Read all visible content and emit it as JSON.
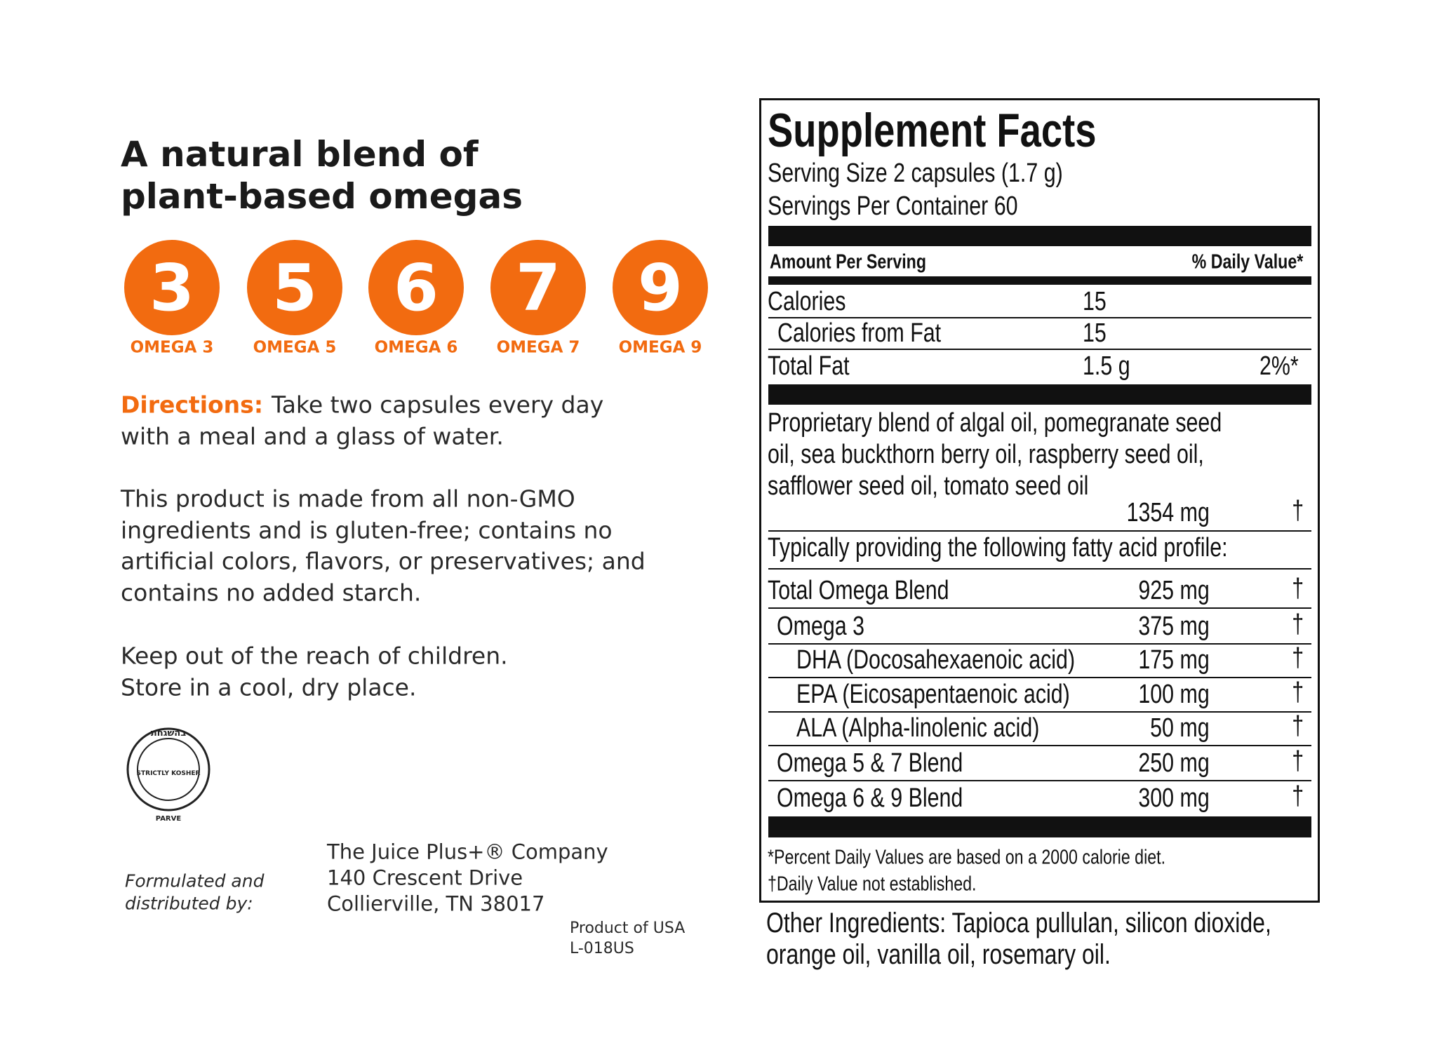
{
  "left": {
    "title_lines": [
      "A natural blend of",
      "plant-based omegas"
    ],
    "omegas": [
      {
        "number": "3",
        "label": "OMEGA 3"
      },
      {
        "number": "5",
        "label": "OMEGA 5"
      },
      {
        "number": "6",
        "label": "OMEGA 6"
      },
      {
        "number": "7",
        "label": "OMEGA 7"
      },
      {
        "number": "9",
        "label": "OMEGA 9"
      }
    ],
    "directions": {
      "label": "Directions:",
      "text_lines": [
        "Take two capsules every day",
        "with a meal and a glass of water."
      ]
    },
    "paragraphs": [
      [
        "This product is made from all non-GMO",
        "ingredients and is gluten-free; contains no",
        "artificial colors, flavors, or preservatives; and",
        "contains no added starch."
      ],
      [
        "Keep out of the reach of children.",
        "Store in a cool, dry place."
      ]
    ],
    "kosher": {
      "top": "בהשגחת",
      "bottom": "STRICTLY KOSHER",
      "below": "PARVE"
    },
    "distributor": {
      "label_lines": [
        "Formulated and",
        "distributed by:"
      ],
      "address_lines": [
        "The Juice Plus+® Company",
        "140 Crescent Drive",
        "Collierville, TN 38017"
      ]
    },
    "origin_lines": [
      "Product of USA",
      "L-018US"
    ]
  },
  "facts": {
    "title": "Supplement Facts",
    "serving_size": "Serving Size 2 capsules (1.7 g)",
    "servings_per_container": "Servings Per Container 60",
    "header": {
      "amount": "Amount Per Serving",
      "daily_value": "% Daily Value*"
    },
    "rows": [
      {
        "name": "Calories",
        "amount": "15"
      },
      {
        "name": "Calories from Fat",
        "amount": "15"
      },
      {
        "name": "Total Fat",
        "amount": "1.5 g",
        "dv": "2%*"
      }
    ],
    "blend": {
      "lines": [
        "Proprietary blend of algal oil, pomegranate seed",
        "oil, sea buckthorn berry oil, raspberry seed oil,",
        "safflower seed oil, tomato seed oil"
      ],
      "amount": "1354 mg",
      "dv": "†"
    },
    "profile_heading": "Typically providing the following fatty acid profile:",
    "profile": [
      {
        "name": "Total Omega Blend",
        "amount": "925 mg",
        "dv": "†"
      },
      {
        "name": "Omega 3",
        "amount": "375 mg",
        "dv": "†"
      },
      {
        "name": "DHA (Docosahexaenoic acid)",
        "amount": "175 mg",
        "dv": "†"
      },
      {
        "name": "EPA (Eicosapentaenoic acid)",
        "amount": "100 mg",
        "dv": "†"
      },
      {
        "name": "ALA (Alpha-linolenic acid)",
        "amount": "50 mg",
        "dv": "†"
      },
      {
        "name": "Omega 5 & 7 Blend",
        "amount": "250 mg",
        "dv": "†"
      },
      {
        "name": "Omega 6 & 9 Blend",
        "amount": "300 mg",
        "dv": "†"
      }
    ],
    "footnotes": [
      "*Percent Daily Values are based on a 2000 calorie diet.",
      "†Daily Value not established."
    ],
    "other_ingredients": [
      "Other Ingredients: Tapioca pullulan, silicon dioxide,",
      "orange oil, vanilla oil, rosemary oil."
    ]
  }
}
